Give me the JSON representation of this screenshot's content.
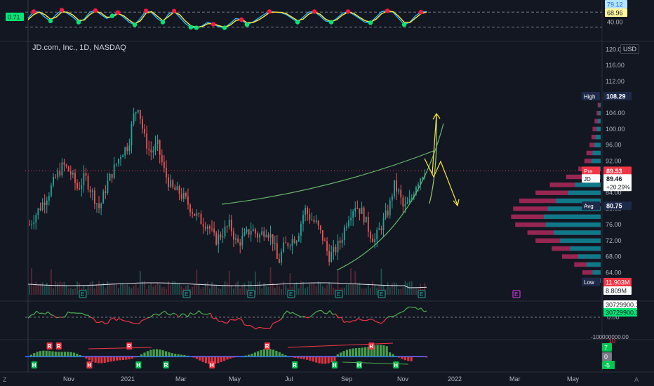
{
  "header": {
    "title": "JD.com, Inc., 1D, NASDAQ",
    "currency_button": "USD"
  },
  "bottom_bar": {
    "left_button": "Z",
    "right_button": "A"
  },
  "chart_data": [
    {
      "type": "line",
      "panel": "stochastic-rsi",
      "y_ticks": [
        40.0
      ],
      "y_tick_labels": [
        "40.00"
      ],
      "value_tags": [
        {
          "text": "79.12",
          "color": "#2962ff",
          "bg": "#b3e5fc"
        },
        {
          "text": "68.96",
          "color": "#131722",
          "bg": "#fff59d"
        }
      ],
      "left_tag": {
        "text": "0.71",
        "bg": "#00e676"
      },
      "levels": [
        80,
        20
      ],
      "series": [
        {
          "color": "#29b6f6",
          "values": [
            55,
            82,
            80,
            60,
            45,
            70,
            88,
            75,
            60,
            40,
            52,
            80,
            86,
            70,
            55,
            65,
            78,
            60,
            40,
            30,
            55,
            85,
            78,
            55,
            40,
            72,
            84,
            60,
            35,
            20,
            18,
            25,
            40,
            32,
            22,
            18,
            35,
            55,
            50,
            30,
            40,
            55,
            70,
            82,
            80,
            78,
            70,
            55,
            40,
            60,
            80,
            82,
            65,
            45,
            40,
            55,
            75,
            82,
            70,
            55,
            40,
            38,
            60,
            82,
            85,
            80,
            55,
            30,
            40,
            65,
            80,
            82
          ]
        },
        {
          "color": "#ffeb3b",
          "values": [
            50,
            70,
            80,
            70,
            52,
            60,
            80,
            80,
            68,
            48,
            48,
            70,
            84,
            76,
            60,
            60,
            74,
            66,
            48,
            34,
            45,
            75,
            82,
            64,
            46,
            62,
            80,
            70,
            45,
            26,
            20,
            22,
            34,
            34,
            26,
            20,
            28,
            46,
            52,
            38,
            38,
            48,
            62,
            78,
            80,
            79,
            74,
            60,
            46,
            52,
            72,
            80,
            72,
            52,
            42,
            50,
            68,
            80,
            75,
            60,
            46,
            40,
            52,
            74,
            84,
            82,
            64,
            40,
            38,
            56,
            74,
            80
          ]
        }
      ],
      "markers": [
        {
          "i": 1,
          "v": 82,
          "color": "#ff1744"
        },
        {
          "i": 4,
          "v": 45,
          "color": "#00e676"
        },
        {
          "i": 6,
          "v": 88,
          "color": "#ff1744"
        },
        {
          "i": 9,
          "v": 40,
          "color": "#00e676"
        },
        {
          "i": 12,
          "v": 86,
          "color": "#ff1744"
        },
        {
          "i": 15,
          "v": 65,
          "color": "#00e676"
        },
        {
          "i": 16,
          "v": 78,
          "color": "#ff1744"
        },
        {
          "i": 19,
          "v": 30,
          "color": "#00e676"
        },
        {
          "i": 21,
          "v": 85,
          "color": "#ff1744"
        },
        {
          "i": 24,
          "v": 40,
          "color": "#00e676"
        },
        {
          "i": 26,
          "v": 84,
          "color": "#ff1744"
        },
        {
          "i": 29,
          "v": 20,
          "color": "#00e676"
        },
        {
          "i": 30,
          "v": 18,
          "color": "#00e676"
        },
        {
          "i": 33,
          "v": 32,
          "color": "#ff1744"
        },
        {
          "i": 35,
          "v": 18,
          "color": "#00e676"
        },
        {
          "i": 38,
          "v": 50,
          "color": "#ff1744"
        },
        {
          "i": 39,
          "v": 30,
          "color": "#00e676"
        },
        {
          "i": 43,
          "v": 82,
          "color": "#ff1744"
        },
        {
          "i": 48,
          "v": 40,
          "color": "#00e676"
        },
        {
          "i": 51,
          "v": 82,
          "color": "#ff1744"
        },
        {
          "i": 54,
          "v": 40,
          "color": "#00e676"
        },
        {
          "i": 57,
          "v": 82,
          "color": "#ff1744"
        },
        {
          "i": 61,
          "v": 38,
          "color": "#00e676"
        },
        {
          "i": 64,
          "v": 85,
          "color": "#ff1744"
        },
        {
          "i": 67,
          "v": 30,
          "color": "#00e676"
        },
        {
          "i": 70,
          "v": 80,
          "color": "#ff1744"
        }
      ]
    },
    {
      "type": "candlestick",
      "panel": "price",
      "x_labels": [
        "Nov",
        "2021",
        "Mar",
        "May",
        "Jul",
        "Sep",
        "Nov",
        "2022",
        "Mar",
        "May"
      ],
      "y_ticks": [
        60,
        64,
        68,
        72,
        76,
        80,
        84,
        88,
        92,
        96,
        100,
        104,
        108,
        112,
        116,
        120
      ],
      "y_tick_labels": [
        "60.00",
        "64.00",
        "68.00",
        "72.00",
        "76.00",
        "80.00",
        "84.00",
        "88.00",
        "92.00",
        "96.00",
        "100.00",
        "104.00",
        "108.00",
        "112.00",
        "116.00",
        "120.00"
      ],
      "ylim": [
        57,
        122
      ],
      "close_path": [
        [
          0,
          76
        ],
        [
          8,
          80
        ],
        [
          16,
          84
        ],
        [
          22,
          88
        ],
        [
          28,
          91
        ],
        [
          34,
          89
        ],
        [
          40,
          85
        ],
        [
          46,
          88
        ],
        [
          52,
          84
        ],
        [
          58,
          80
        ],
        [
          64,
          86
        ],
        [
          70,
          90
        ],
        [
          76,
          94
        ],
        [
          82,
          96
        ],
        [
          86,
          103
        ],
        [
          90,
          106
        ],
        [
          95,
          98
        ],
        [
          100,
          94
        ],
        [
          106,
          96
        ],
        [
          112,
          89
        ],
        [
          118,
          85
        ],
        [
          124,
          84
        ],
        [
          130,
          82
        ],
        [
          136,
          79
        ],
        [
          142,
          77
        ],
        [
          148,
          76
        ],
        [
          154,
          72
        ],
        [
          160,
          74
        ],
        [
          166,
          76
        ],
        [
          172,
          71
        ],
        [
          178,
          73
        ],
        [
          184,
          75
        ],
        [
          190,
          73
        ],
        [
          196,
          75
        ],
        [
          202,
          72
        ],
        [
          206,
          66
        ],
        [
          210,
          70
        ],
        [
          216,
          72
        ],
        [
          222,
          73
        ],
        [
          228,
          80
        ],
        [
          232,
          78
        ],
        [
          238,
          76
        ],
        [
          244,
          72
        ],
        [
          248,
          68
        ],
        [
          252,
          69
        ],
        [
          258,
          72
        ],
        [
          264,
          78
        ],
        [
          270,
          81
        ],
        [
          276,
          79
        ],
        [
          282,
          74
        ],
        [
          286,
          72
        ],
        [
          292,
          76
        ],
        [
          298,
          80
        ],
        [
          302,
          86
        ],
        [
          306,
          84
        ],
        [
          310,
          80
        ],
        [
          316,
          82
        ],
        [
          320,
          86
        ],
        [
          324,
          88
        ],
        [
          328,
          90
        ]
      ],
      "pre_line": 89.53,
      "value_tags": [
        {
          "label": "High",
          "value": "108.29",
          "y": 108.29
        },
        {
          "label": "Pre",
          "value": "89.53",
          "y": 89.53
        },
        {
          "label": "JD",
          "value": "89.46",
          "y": 87.6,
          "extra": "+20.29%"
        },
        {
          "label": "Avg",
          "value": "80.75",
          "y": 80.75
        },
        {
          "label": "Low",
          "value": "61.65",
          "y": 61.65
        }
      ],
      "volume_tags": [
        {
          "text": "11.903M",
          "bg": "#f23645"
        },
        {
          "text": "8.809M",
          "bg": "#ffffff"
        }
      ],
      "earnings_marks": [
        "E",
        "E",
        "E",
        "E",
        "E",
        "E",
        "E"
      ],
      "future_earnings_mark": "E",
      "volume_profile": [
        {
          "price": 106,
          "up": 1,
          "down": 3
        },
        {
          "price": 104,
          "up": 2,
          "down": 4
        },
        {
          "price": 102,
          "up": 3,
          "down": 6
        },
        {
          "price": 100,
          "up": 4,
          "down": 8
        },
        {
          "price": 98,
          "up": 5,
          "down": 9
        },
        {
          "price": 96,
          "up": 6,
          "down": 11
        },
        {
          "price": 94,
          "up": 8,
          "down": 14
        },
        {
          "price": 92,
          "up": 9,
          "down": 16
        },
        {
          "price": 90,
          "up": 12,
          "down": 22
        },
        {
          "price": 88,
          "up": 18,
          "down": 34
        },
        {
          "price": 86,
          "up": 25,
          "down": 50
        },
        {
          "price": 84,
          "up": 32,
          "down": 64
        },
        {
          "price": 82,
          "up": 44,
          "down": 80
        },
        {
          "price": 80,
          "up": 52,
          "down": 86
        },
        {
          "price": 78,
          "up": 56,
          "down": 88
        },
        {
          "price": 76,
          "up": 54,
          "down": 84
        },
        {
          "price": 74,
          "up": 46,
          "down": 72
        },
        {
          "price": 72,
          "up": 40,
          "down": 64
        },
        {
          "price": 70,
          "up": 30,
          "down": 48
        },
        {
          "price": 68,
          "up": 22,
          "down": 38
        },
        {
          "price": 66,
          "up": 14,
          "down": 26
        },
        {
          "price": 64,
          "up": 8,
          "down": 18
        },
        {
          "price": 62,
          "up": 4,
          "down": 10
        }
      ]
    },
    {
      "type": "line",
      "panel": "oscillator",
      "y_ticks": [
        0
      ],
      "y_tick_labels": [
        "0.00"
      ],
      "bottom_tick_label": "-100000000.00",
      "value_tags": [
        {
          "text": "30729900.36",
          "bg": "#ffffff"
        },
        {
          "text": "30729900.36",
          "bg": "#00e676"
        }
      ]
    },
    {
      "type": "bar",
      "panel": "momentum",
      "y_tick_labels": [
        "10",
        "0",
        "-5"
      ],
      "value_tags": [
        {
          "text": "7",
          "bg": "#00c853"
        },
        {
          "text": "0",
          "bg": "#787b86"
        },
        {
          "text": "-5",
          "bg": "#00c853"
        }
      ],
      "signals": [
        {
          "i": 2,
          "label": "H",
          "color": "#00c853"
        },
        {
          "i": 7,
          "label": "R",
          "color": "#f23645"
        },
        {
          "i": 10,
          "label": "R",
          "color": "#f23645"
        },
        {
          "i": 20,
          "label": "H",
          "color": "#f23645"
        },
        {
          "i": 33,
          "label": "R",
          "color": "#f23645"
        },
        {
          "i": 36,
          "label": "H",
          "color": "#00c853"
        },
        {
          "i": 45,
          "label": "R",
          "color": "#00c853"
        },
        {
          "i": 60,
          "label": "H",
          "color": "#f23645"
        },
        {
          "i": 78,
          "label": "R",
          "color": "#f23645"
        },
        {
          "i": 87,
          "label": "R",
          "color": "#00c853"
        },
        {
          "i": 100,
          "label": "H",
          "color": "#00c853"
        },
        {
          "i": 108,
          "label": "H",
          "color": "#00c853"
        },
        {
          "i": 112,
          "label": "R",
          "color": "#f23645"
        },
        {
          "i": 120,
          "label": "H",
          "color": "#00c853"
        }
      ]
    }
  ]
}
